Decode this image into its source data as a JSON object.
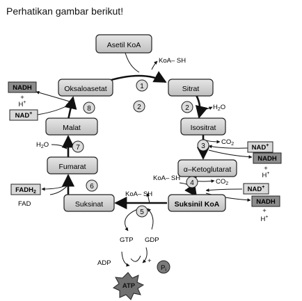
{
  "heading": "Perhatikan gambar berikut!",
  "compounds": {
    "asetil_koa": "Asetil KoA",
    "sitrat": "Sitrat",
    "isositrat": "Isositrat",
    "ketoglutarat": "α–Ketoglutarat",
    "suksinil_koa": "Suksinil KoA",
    "suksinat": "Suksinat",
    "fumarat": "Fumarat",
    "malat": "Malat",
    "oksaloasetat": "Oksaloasetat"
  },
  "steps": [
    "1",
    "2",
    "2",
    "3",
    "4",
    "5",
    "6",
    "7",
    "8"
  ],
  "molecules": {
    "koash_1": "KoA– SH",
    "koash_2": "KoA– SH",
    "koash_3": "KoA– SH",
    "h2o_1": "H",
    "h2o_1_sub": "2",
    "h2o_1_end": "O",
    "h2o_2": "H",
    "h2o_2_sub": "2",
    "h2o_2_end": "O",
    "co2_1": "CO",
    "co2_1_sub": "2",
    "co2_2": "CO",
    "co2_2_sub": "2",
    "nad_1": "NAD",
    "nad_1_sup": "+",
    "nadh_1": "NADH",
    "hplus_1": "H",
    "hplus_1_sup": "+",
    "nad_2": "NAD",
    "nad_2_sup": "+",
    "nadh_2": "NADH",
    "hplus_2": "H",
    "hplus_2_sup": "+",
    "nad_3": "NAD",
    "nad_3_sup": "+",
    "nadh_3": "NADH",
    "plus_3": "+",
    "hplus_3": "H",
    "hplus_3_sup": "+",
    "fadh2": "FADH",
    "fadh2_sub": "2",
    "fad": "FAD",
    "gtp": "GTP",
    "gdp": "GDP",
    "adp": "ADP",
    "atp": "ATP",
    "pi": "P",
    "pi_sub": "i",
    "plus_pi": "+"
  },
  "colors": {
    "box_fill": "#d9d9d9",
    "dark_fill": "#8c8c8c",
    "atp_fill": "#707070",
    "stroke": "#222222"
  }
}
